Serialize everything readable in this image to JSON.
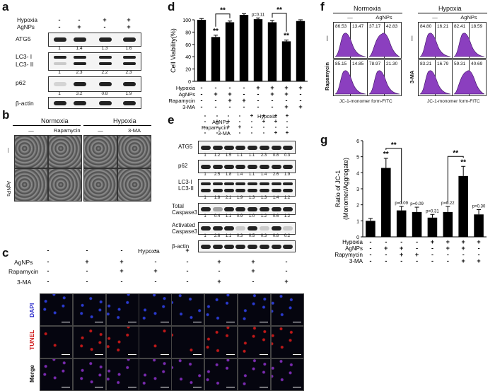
{
  "panel_labels": {
    "a": "a",
    "b": "b",
    "c": "c",
    "d": "d",
    "e": "e",
    "f": "f",
    "g": "g"
  },
  "panel_a": {
    "rows": [
      "Hypoxia",
      "AgNPs"
    ],
    "signs": [
      [
        "-",
        "-",
        "+",
        "+"
      ],
      [
        "-",
        "+",
        "-",
        "+"
      ]
    ],
    "blots": [
      {
        "name": "ATG5",
        "nums": [
          "1",
          "1.4",
          "1.3",
          "1.6"
        ]
      },
      {
        "name": "LC3- I\nLC3- II",
        "nums": [
          "1",
          "2.3",
          "2.2",
          "2.3"
        ]
      },
      {
        "name": "p62",
        "nums": [
          "1",
          "3.2",
          "0.8",
          "1.9"
        ]
      },
      {
        "name": "β-actin",
        "nums": []
      }
    ]
  },
  "panel_b": {
    "groups": [
      "Normoxia",
      "Hypoxia"
    ],
    "cols": [
      "—",
      "Rapamycin",
      "—",
      "3-MA"
    ],
    "rows": [
      "—",
      "AgNPs"
    ]
  },
  "panel_c": {
    "rows": [
      "Hypoxia",
      "AgNPs",
      "Rapamycin",
      "3-MA"
    ],
    "signs": [
      [
        "-",
        "-",
        "-",
        "-",
        "+",
        "+",
        "+",
        "+"
      ],
      [
        "-",
        "+",
        "+",
        "-",
        "-",
        "+",
        "+",
        "-"
      ],
      [
        "-",
        "-",
        "+",
        "+",
        "-",
        "-",
        "+",
        "-"
      ],
      [
        "-",
        "-",
        "-",
        "-",
        "-",
        "+",
        "-",
        "+"
      ]
    ],
    "image_rows": [
      "DAPI",
      "TUNEL",
      "Merge"
    ],
    "image_row_colors": [
      "#2424c8",
      "#d01a1a",
      "#111111"
    ]
  },
  "panel_d": {
    "chart_data": {
      "type": "bar",
      "ylabel": "Cell Viability(%)",
      "ylim": [
        0,
        100
      ],
      "yticks": [
        "0",
        "20",
        "40",
        "60",
        "80",
        "100"
      ],
      "values": [
        100,
        72,
        96,
        108,
        101,
        96,
        65,
        98
      ],
      "errors": [
        2,
        3,
        2,
        2,
        2,
        3,
        2,
        2
      ],
      "row_labels": [
        "Hypoxia",
        "AgNPs",
        "Rapamycin",
        "3-MA"
      ],
      "signs": [
        [
          "-",
          "-",
          "-",
          "-",
          "+",
          "+",
          "+",
          "+"
        ],
        [
          "-",
          "+",
          "+",
          "-",
          "-",
          "+",
          "+",
          "-"
        ],
        [
          "-",
          "-",
          "+",
          "+",
          "-",
          "-",
          "-",
          "-"
        ],
        [
          "-",
          "-",
          "-",
          "-",
          "-",
          "-",
          "+",
          "+"
        ]
      ],
      "annotations": [
        {
          "bar": 1,
          "text": "**"
        },
        {
          "bar": 6,
          "text": "**"
        },
        {
          "bar": 4,
          "text": "p=0.11"
        }
      ],
      "brackets": [
        {
          "from": 1,
          "to": 2,
          "text": "**"
        },
        {
          "from": 5,
          "to": 6,
          "text": "**"
        }
      ]
    }
  },
  "panel_e": {
    "rows": [
      "Hypoxia",
      "AgNPs",
      "Rapamycin",
      "3-MA"
    ],
    "signs": [
      [
        "-",
        "-",
        "-",
        "-",
        "+",
        "+",
        "+",
        "+"
      ],
      [
        "-",
        "+",
        "+",
        "-",
        "-",
        "+",
        "+",
        "-"
      ],
      [
        "-",
        "-",
        "+",
        "+",
        "-",
        "-",
        "-",
        "-"
      ],
      [
        "-",
        "-",
        "-",
        "-",
        "-",
        "-",
        "+",
        "+"
      ]
    ],
    "blots": [
      {
        "name": "ATG5",
        "nums": [
          "1",
          "1.2",
          "1.5",
          "1.1",
          "1.1",
          "2.3",
          "0.8",
          "0.3"
        ]
      },
      {
        "name": "p62",
        "nums": [
          "1",
          "2.5",
          "1.8",
          "1.4",
          "1.1",
          "1.4",
          "2.6",
          "1.9"
        ]
      },
      {
        "name": "LC3-I\nLC3-II",
        "nums": [
          "1",
          "1.8",
          "2.1",
          "1.9",
          "1.3",
          "1.3",
          "1.4",
          "1.2"
        ]
      },
      {
        "name": "Total\nCaspase3",
        "nums": [
          "1",
          "0.4",
          "1.1",
          "0.9",
          "1.0",
          "1.2",
          "0.6",
          "1.2"
        ]
      },
      {
        "name": "Activated\nCaspase3",
        "nums": [
          "1",
          "2.6",
          "1.1",
          "0.3",
          "0.5",
          "0.3",
          "0.8",
          "0.2"
        ]
      },
      {
        "name": "β-actin",
        "nums": []
      }
    ]
  },
  "panel_f": {
    "groups": [
      "Normoxia",
      "Hypoxia"
    ],
    "cols": [
      "—",
      "AgNPs",
      "—",
      "AgNPs"
    ],
    "row_labels_left": [
      "—",
      "Rapamycin"
    ],
    "row_labels_right": [
      "—",
      "3-MA"
    ],
    "xlabel": "JC-1-monomer form-FITC",
    "values": [
      [
        [
          "86.53",
          "13.47"
        ],
        [
          "37.17",
          "42.83"
        ],
        [
          "84.80",
          "16.21"
        ],
        [
          "82.41",
          "18.59"
        ]
      ],
      [
        [
          "85.15",
          "14.85"
        ],
        [
          "78.97",
          "21.30"
        ],
        [
          "83.21",
          "16.79"
        ],
        [
          "59.31",
          "40.69"
        ]
      ]
    ]
  },
  "panel_g": {
    "chart_data": {
      "type": "bar",
      "ylabel": "Ratio of JC-1\n(Monomer/Aggregate)",
      "ylim": [
        0,
        6
      ],
      "yticks": [
        "0",
        "1",
        "2",
        "3",
        "4",
        "5",
        "6"
      ],
      "values": [
        1.0,
        4.3,
        1.65,
        1.55,
        1.2,
        1.55,
        3.8,
        1.4
      ],
      "errors": [
        0.15,
        0.6,
        0.25,
        0.3,
        0.2,
        0.35,
        0.6,
        0.3
      ],
      "row_labels": [
        "Hypoxia",
        "AgNPs",
        "Rapymycin",
        "3-MA"
      ],
      "signs": [
        [
          "-",
          "-",
          "-",
          "-",
          "+",
          "+",
          "+",
          "+"
        ],
        [
          "-",
          "+",
          "+",
          "-",
          "-",
          "+",
          "+",
          "-"
        ],
        [
          "-",
          "-",
          "+",
          "+",
          "-",
          "-",
          "-",
          "-"
        ],
        [
          "-",
          "-",
          "-",
          "-",
          "-",
          "-",
          "+",
          "+"
        ]
      ],
      "annotations": [
        {
          "bar": 1,
          "text": "**"
        },
        {
          "bar": 6,
          "text": "**"
        },
        {
          "bar": 2,
          "text": "p=0.09"
        },
        {
          "bar": 3,
          "text": "p=0.09"
        },
        {
          "bar": 4,
          "text": "p=0.31"
        },
        {
          "bar": 5,
          "text": "p=0.22"
        },
        {
          "bar": 7,
          "text": "p=0.30"
        }
      ],
      "brackets": [
        {
          "from": 1,
          "to": 2,
          "text": "**"
        },
        {
          "from": 5,
          "to": 6,
          "text": "**"
        }
      ]
    }
  }
}
